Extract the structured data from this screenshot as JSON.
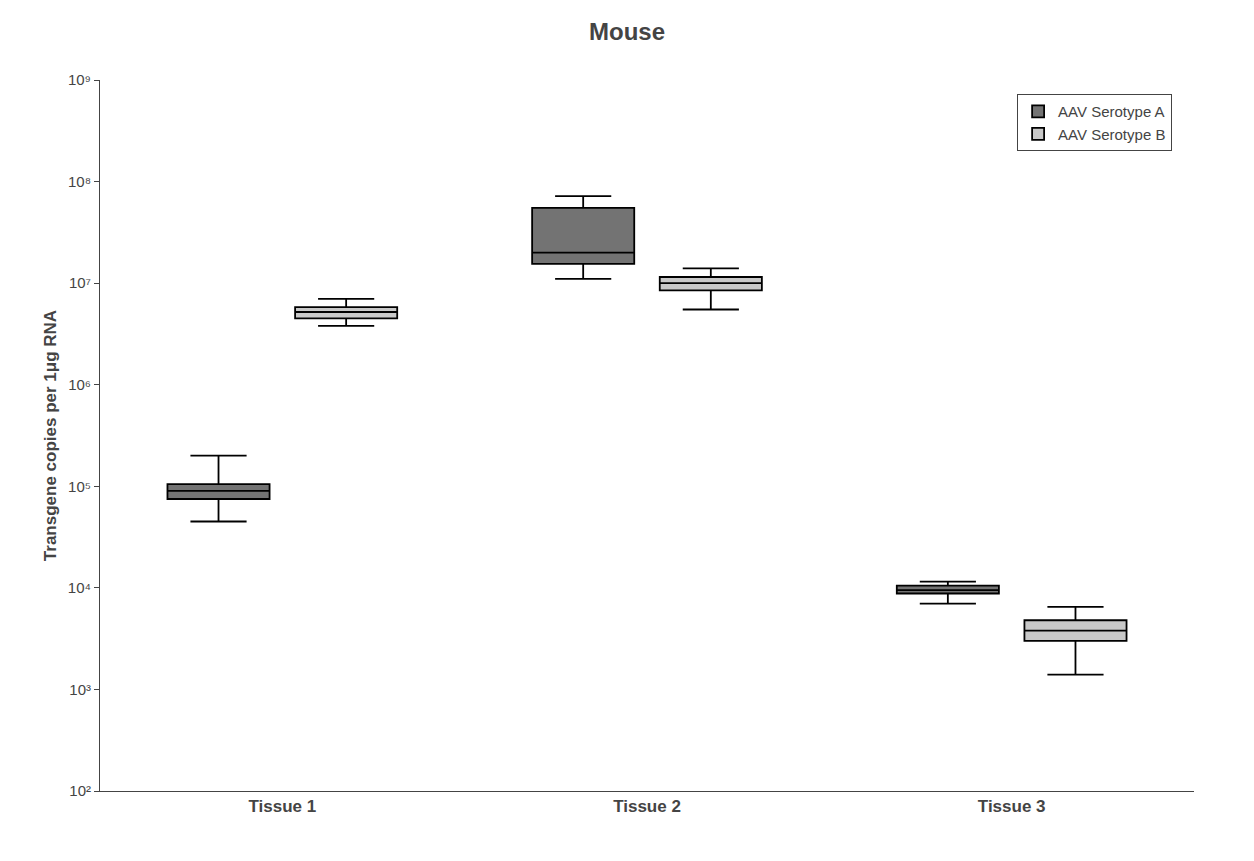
{
  "chart_data": {
    "type": "box",
    "title": "Mouse",
    "y_label": "Transgene copies per 1μg RNA",
    "categories": [
      "Tissue 1",
      "Tissue 2",
      "Tissue 3"
    ],
    "series": [
      {
        "name": "AAV Serotype A",
        "color": "#737373",
        "whisker_low": [
          45000.0,
          11000000.0,
          7000.0
        ],
        "q1": [
          75000.0,
          15500000.0,
          8800.0
        ],
        "median": [
          90000.0,
          20000000.0,
          9500.0
        ],
        "q3": [
          105000.0,
          55000000.0,
          10500.0
        ],
        "whisker_high": [
          200000.0,
          72000000.0,
          11500.0
        ]
      },
      {
        "name": "AAV Serotype B",
        "color": "#c8c8c8",
        "whisker_low": [
          3800000.0,
          5500000.0,
          1400.0
        ],
        "q1": [
          4500000.0,
          8500000.0,
          3000.0
        ],
        "median": [
          5200000.0,
          10000000.0,
          3800.0
        ],
        "q3": [
          5800000.0,
          11500000.0,
          4800.0
        ],
        "whisker_high": [
          7000000.0,
          14000000.0,
          6500.0
        ]
      }
    ],
    "log": "y",
    "ylim": [
      100,
      1000000000
    ],
    "yticks": [
      {
        "value": 100,
        "label": "10²"
      },
      {
        "value": 1000,
        "label": "10³"
      },
      {
        "value": 10000,
        "label": "10⁴"
      },
      {
        "value": 100000,
        "label": "10⁵"
      },
      {
        "value": 1000000,
        "label": "10⁶"
      },
      {
        "value": 10000000,
        "label": "10⁷"
      },
      {
        "value": 100000000,
        "label": "10⁸"
      },
      {
        "value": 1000000000,
        "label": "10⁹"
      }
    ],
    "grid": false,
    "legend": "upper right"
  }
}
